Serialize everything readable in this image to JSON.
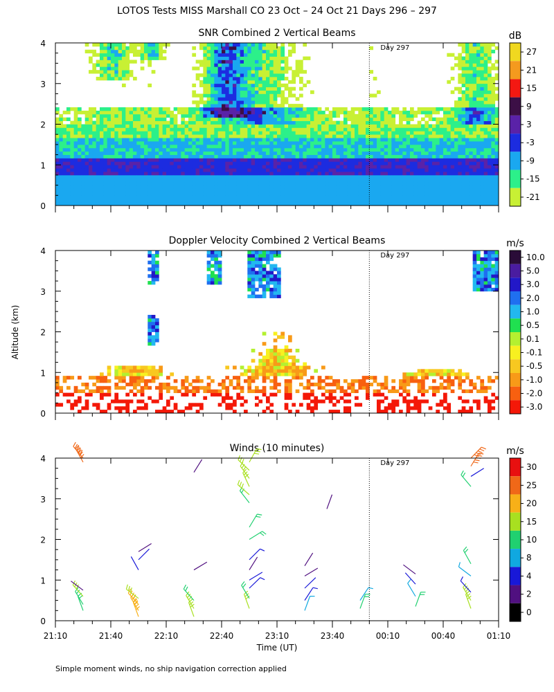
{
  "figure": {
    "title": "LOTOS Tests MISS Marshall CO  23 Oct – 24 Oct 21 Days 296 – 297",
    "ylabel": "Altitude (km)",
    "xlabel": "Time (UT)",
    "footer": "Simple moment winds, no ship navigation correction applied",
    "day_marker_label": "Day 297"
  },
  "chart_data": [
    {
      "type": "heatmap",
      "title": "SNR Combined 2 Vertical Beams",
      "colorbar_unit": "dB",
      "colorbar_labels": [
        "27",
        "21",
        "15",
        "9",
        "3",
        "-3",
        "-9",
        "-15",
        "-21"
      ],
      "colorbar_colors": [
        "#f0d820",
        "#f49a1e",
        "#f41812",
        "#3c0f46",
        "#5a22a8",
        "#1c2ce0",
        "#1aa8f0",
        "#2cf08a",
        "#c8f034"
      ],
      "yticks": [
        "0",
        "1",
        "2",
        "3",
        "4"
      ],
      "ylim": [
        0,
        4
      ],
      "day_marker_time": "00:00"
    },
    {
      "type": "heatmap",
      "title": "Doppler Velocity Combined 2 Vertical Beams",
      "colorbar_unit": "m/s",
      "colorbar_labels": [
        "10.0",
        "5.0",
        "3.0",
        "2.0",
        "1.0",
        "0.5",
        "0.1",
        "-0.1",
        "-0.5",
        "-1.0",
        "-2.0",
        "-3.0"
      ],
      "colorbar_colors": [
        "#2a0c38",
        "#4a1ca0",
        "#2218c8",
        "#1f6ff0",
        "#22b8f0",
        "#20e050",
        "#b4f030",
        "#f8f020",
        "#f8c820",
        "#f89a18",
        "#f86010",
        "#f41808"
      ],
      "yticks": [
        "0",
        "1",
        "2",
        "3",
        "4"
      ],
      "ylim": [
        0,
        4
      ],
      "day_marker_time": "00:00"
    },
    {
      "type": "scatter",
      "title": "Winds (10 minutes)",
      "colorbar_unit": "m/s",
      "colorbar_labels": [
        "30",
        "25",
        "20",
        "15",
        "10",
        "8",
        "4",
        "2",
        "0"
      ],
      "colorbar_colors": [
        "#e81010",
        "#f06818",
        "#f8b018",
        "#a8e020",
        "#20d070",
        "#10a8e0",
        "#1818d8",
        "#501080",
        "#000000"
      ],
      "yticks": [
        "0",
        "1",
        "2",
        "3",
        "4"
      ],
      "ylim": [
        0,
        4
      ],
      "xticks": [
        "21:10",
        "21:40",
        "22:10",
        "22:40",
        "23:10",
        "23:40",
        "00:10",
        "00:40",
        "01:10"
      ],
      "xlim": [
        "21:10",
        "01:10"
      ],
      "day_marker_time": "00:00",
      "profiles": [
        {
          "time": "21:25",
          "heights": [
            0.25,
            0.4,
            0.6,
            0.75,
            3.9,
            4.0
          ],
          "speeds": [
            14,
            12,
            16,
            3,
            26,
            27
          ]
        },
        {
          "time": "21:55",
          "heights": [
            0.1,
            0.25,
            0.4,
            0.55,
            1.25,
            1.5,
            1.7
          ],
          "speeds": [
            22,
            21,
            20,
            18,
            4,
            4,
            3
          ]
        },
        {
          "time": "22:25",
          "heights": [
            0.1,
            0.3,
            0.5,
            1.25,
            3.65
          ],
          "speeds": [
            16,
            15,
            14,
            3,
            3
          ]
        },
        {
          "time": "22:55",
          "heights": [
            0.3,
            0.55,
            0.8,
            1.0,
            1.25,
            1.5,
            2.0,
            2.3,
            2.9,
            3.1,
            3.3,
            3.5,
            3.7,
            3.9
          ],
          "speeds": [
            15,
            14,
            5,
            4,
            3,
            6,
            10,
            12,
            14,
            15,
            16,
            17,
            18,
            16
          ]
        },
        {
          "time": "23:25",
          "heights": [
            0.25,
            0.5,
            0.8,
            1.1,
            1.35
          ],
          "speeds": [
            8,
            6,
            4,
            3,
            2
          ]
        },
        {
          "time": "23:37",
          "heights": [
            2.75
          ],
          "speeds": [
            3
          ]
        },
        {
          "time": "23:55",
          "heights": [
            0.3,
            0.5
          ],
          "speeds": [
            10,
            8
          ]
        },
        {
          "time": "00:25",
          "heights": [
            0.35,
            0.6,
            0.9,
            1.15
          ],
          "speeds": [
            14,
            8,
            4,
            3
          ]
        },
        {
          "time": "00:55",
          "heights": [
            0.3,
            0.5,
            0.7,
            1.1,
            1.4,
            3.3,
            3.55,
            3.8,
            4.0
          ],
          "speeds": [
            16,
            15,
            6,
            9,
            10,
            14,
            4,
            26,
            27
          ]
        }
      ]
    }
  ]
}
